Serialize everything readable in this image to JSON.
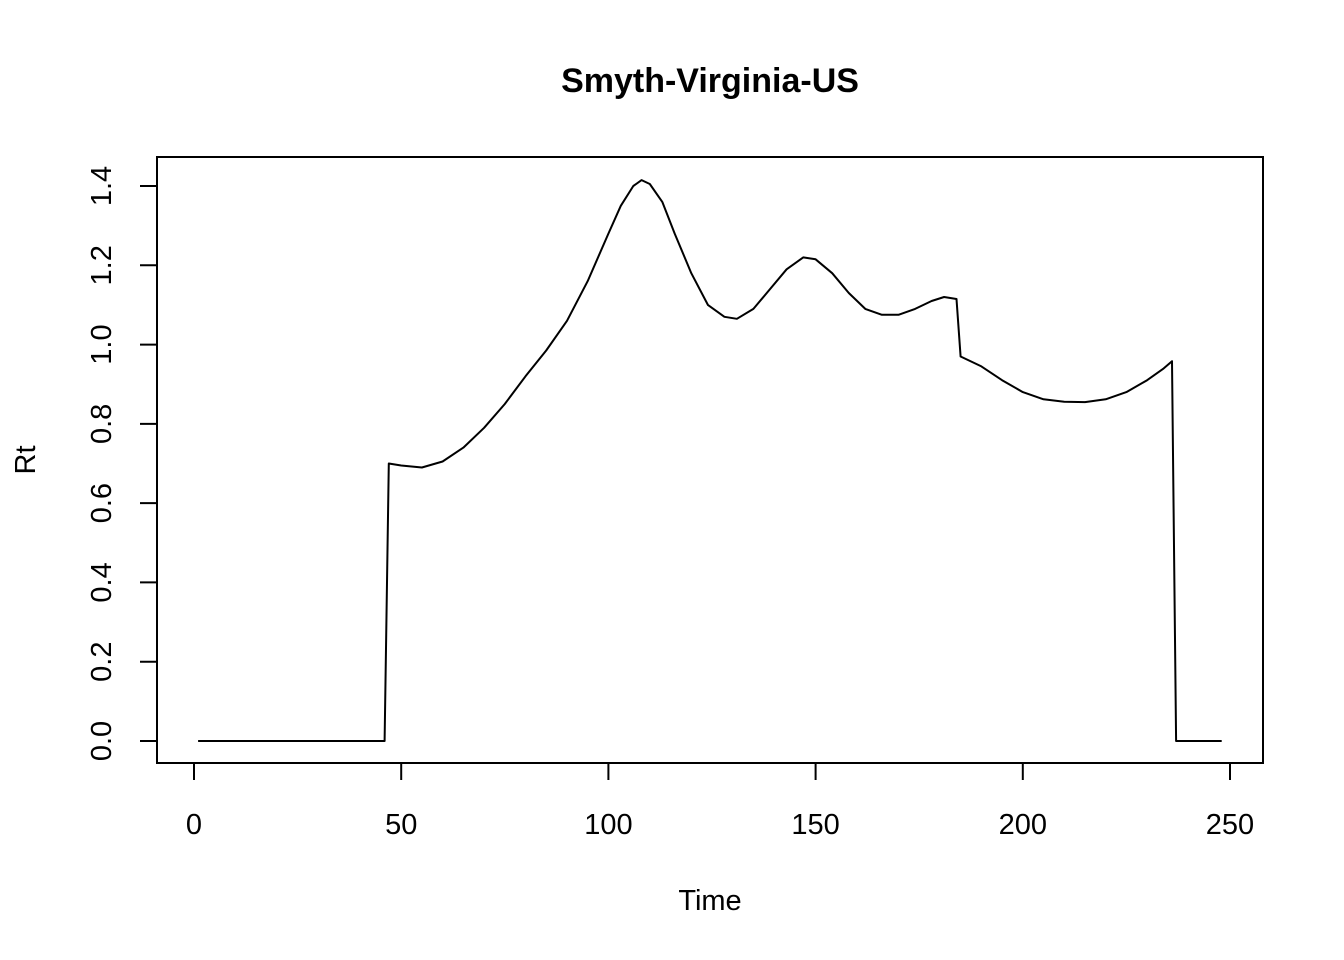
{
  "chart_data": {
    "type": "line",
    "title": "Smyth-Virginia-US",
    "xlabel": "Time",
    "ylabel": "Rt",
    "xlim": [
      0,
      250
    ],
    "ylim": [
      0,
      1.4
    ],
    "x_ticks": [
      0,
      50,
      100,
      150,
      200,
      250
    ],
    "y_ticks": [
      0.0,
      0.2,
      0.4,
      0.6,
      0.8,
      1.0,
      1.2,
      1.4
    ],
    "y_tick_labels": [
      "0.0",
      "0.2",
      "0.4",
      "0.6",
      "0.8",
      "1.0",
      "1.2",
      "1.4"
    ],
    "grid": false,
    "series": [
      {
        "points": [
          [
            1,
            0
          ],
          [
            46,
            0
          ],
          [
            47,
            0.7
          ],
          [
            50,
            0.695
          ],
          [
            55,
            0.69
          ],
          [
            60,
            0.705
          ],
          [
            65,
            0.74
          ],
          [
            70,
            0.79
          ],
          [
            75,
            0.85
          ],
          [
            80,
            0.92
          ],
          [
            85,
            0.985
          ],
          [
            90,
            1.06
          ],
          [
            95,
            1.16
          ],
          [
            100,
            1.28
          ],
          [
            103,
            1.35
          ],
          [
            106,
            1.4
          ],
          [
            108,
            1.415
          ],
          [
            110,
            1.405
          ],
          [
            113,
            1.36
          ],
          [
            116,
            1.28
          ],
          [
            120,
            1.18
          ],
          [
            124,
            1.1
          ],
          [
            128,
            1.07
          ],
          [
            131,
            1.065
          ],
          [
            135,
            1.09
          ],
          [
            139,
            1.14
          ],
          [
            143,
            1.19
          ],
          [
            147,
            1.22
          ],
          [
            150,
            1.215
          ],
          [
            154,
            1.18
          ],
          [
            158,
            1.13
          ],
          [
            162,
            1.09
          ],
          [
            166,
            1.075
          ],
          [
            170,
            1.075
          ],
          [
            174,
            1.09
          ],
          [
            178,
            1.11
          ],
          [
            181,
            1.12
          ],
          [
            184,
            1.115
          ],
          [
            185,
            0.97
          ],
          [
            190,
            0.945
          ],
          [
            195,
            0.91
          ],
          [
            200,
            0.88
          ],
          [
            205,
            0.862
          ],
          [
            210,
            0.856
          ],
          [
            215,
            0.855
          ],
          [
            220,
            0.862
          ],
          [
            225,
            0.88
          ],
          [
            230,
            0.91
          ],
          [
            234,
            0.94
          ],
          [
            236,
            0.958
          ],
          [
            237,
            0
          ],
          [
            248,
            0
          ]
        ]
      }
    ]
  }
}
